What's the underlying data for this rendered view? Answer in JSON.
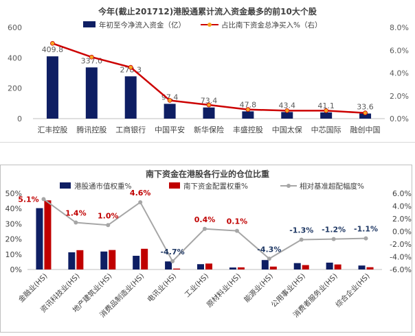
{
  "chart_data": [
    {
      "type": "bar",
      "title": "今年(截止201712)港股通累计流入资金最多的前10大个股",
      "categories": [
        "汇丰控股",
        "腾讯控股",
        "工商银行",
        "中国平安",
        "新华保险",
        "丰盛控股",
        "中国太保",
        "中芯国际",
        "融创中国"
      ],
      "series": [
        {
          "name": "年初至今净流入资金（亿）",
          "type": "bar",
          "axis": "left",
          "color": "#0e1e63",
          "values": [
            409.8,
            337.0,
            278.3,
            97.4,
            73.4,
            47.8,
            43.4,
            41.1,
            33.6
          ],
          "labels": [
            "409.8",
            "337.0",
            "278.3",
            "97.4",
            "73.4",
            "47.8",
            "43.4",
            "41.1",
            "33.6"
          ]
        },
        {
          "name": "占比南下资金总净买入%（右）",
          "type": "line",
          "axis": "right",
          "color": "#cc0000",
          "values": [
            6.6,
            5.4,
            4.5,
            1.6,
            1.2,
            0.8,
            0.7,
            0.7,
            0.5
          ]
        }
      ],
      "yleft": {
        "ticks": [
          "600",
          "400",
          "200",
          "0"
        ],
        "lim": [
          0,
          600
        ]
      },
      "yright": {
        "ticks": [
          "8.0%",
          "6.0%",
          "4.0%",
          "2.0%",
          "0.0%"
        ],
        "lim": [
          0,
          8
        ]
      },
      "legend": "top"
    },
    {
      "type": "bar",
      "title": "南下资金在港股各行业的仓位比重",
      "categories": [
        "金融业(HS)",
        "资讯科技业(HS)",
        "地产建筑业(HS)",
        "消费品制造业(HS)",
        "电讯业(HS)",
        "工业(HS)",
        "原材料业(HS)",
        "能源业(HS)",
        "公用事业(HS)",
        "消费者服务业(HS)",
        "综合企业(HS)"
      ],
      "series": [
        {
          "name": "港股通市值权重%",
          "type": "bar",
          "axis": "left",
          "color": "#0e1e63",
          "values": [
            40.3,
            11.3,
            11.8,
            9.0,
            5.3,
            3.5,
            1.3,
            6.2,
            4.2,
            4.5,
            2.6
          ]
        },
        {
          "name": "南下资金配置权重%",
          "type": "bar",
          "axis": "left",
          "color": "#c00000",
          "values": [
            45.4,
            12.7,
            12.8,
            13.6,
            0.6,
            3.9,
            1.4,
            1.9,
            2.9,
            3.3,
            1.5
          ]
        },
        {
          "name": "相对基准超配幅度%",
          "type": "line",
          "axis": "right",
          "color": "#a6a6a6",
          "values": [
            5.1,
            1.4,
            1.0,
            4.6,
            -4.7,
            0.4,
            0.1,
            -4.3,
            -1.3,
            -1.2,
            -1.1
          ],
          "labels": [
            "5.1%",
            "1.4%",
            "1.0%",
            "4.6%",
            "-4.7%",
            "0.4%",
            "0.1%",
            "-4.3%",
            "-1.3%",
            "-1.2%",
            "-1.1%"
          ]
        }
      ],
      "yleft": {
        "ticks": [
          "50%",
          "40%",
          "30%",
          "20%",
          "10%",
          "0%"
        ],
        "lim": [
          0,
          50
        ]
      },
      "yright": {
        "ticks": [
          "6.0%",
          "4.0%",
          "2.0%",
          "0.0%",
          "-2.0%",
          "-4.0%",
          "-6.0%"
        ],
        "lim": [
          -6,
          6
        ]
      },
      "legend": "top"
    }
  ]
}
